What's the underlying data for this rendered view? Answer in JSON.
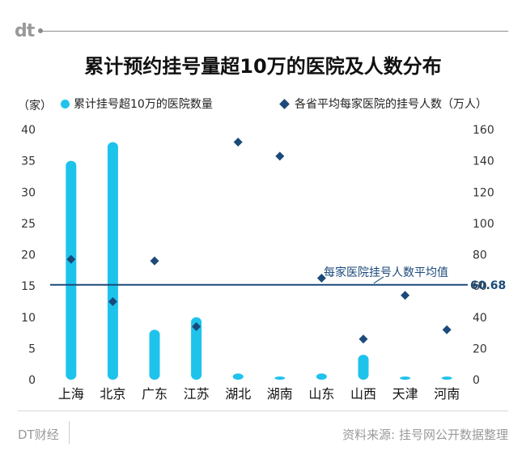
{
  "brand": "dt",
  "title": "累计预约挂号量超10万的医院及人数分布",
  "left_unit": "（家）",
  "legend": {
    "bars": "累计挂号超10万的医院数量",
    "points": "各省平均每家医院的挂号人数（万人）"
  },
  "annotation": {
    "label": "每家医院挂号人数平均值",
    "value_label": "60.68"
  },
  "footer": {
    "left": "DT财经",
    "right": "资料来源: 挂号网公开数据整理"
  },
  "colors": {
    "bar": "#1ec3ec",
    "point": "#1b4a7a",
    "refline": "#1b4a7a",
    "axis_text": "#333333"
  },
  "chart_data": {
    "type": "bar",
    "categories": [
      "上海",
      "北京",
      "广东",
      "江苏",
      "湖北",
      "湖南",
      "山东",
      "山西",
      "天津",
      "河南"
    ],
    "series": [
      {
        "name": "累计挂号超10万的医院数量",
        "axis": "left",
        "type": "bar",
        "values": [
          35,
          38,
          8,
          10,
          1,
          0,
          1,
          4,
          0,
          0
        ]
      },
      {
        "name": "各省平均每家医院的挂号人数（万人）",
        "axis": "right",
        "type": "scatter",
        "marker": "diamond",
        "values": [
          77,
          50,
          76,
          34,
          152,
          143,
          65,
          26,
          54,
          32
        ]
      }
    ],
    "y_left": {
      "min": 0,
      "max": 40,
      "ticks": [
        0,
        5,
        10,
        15,
        20,
        25,
        30,
        35,
        40
      ]
    },
    "y_right": {
      "min": 0,
      "max": 160,
      "ticks": [
        0,
        20,
        40,
        60,
        80,
        100,
        120,
        140,
        160
      ]
    },
    "reference_line": {
      "axis": "right",
      "value": 60.68,
      "label": "每家医院挂号人数平均值"
    }
  }
}
